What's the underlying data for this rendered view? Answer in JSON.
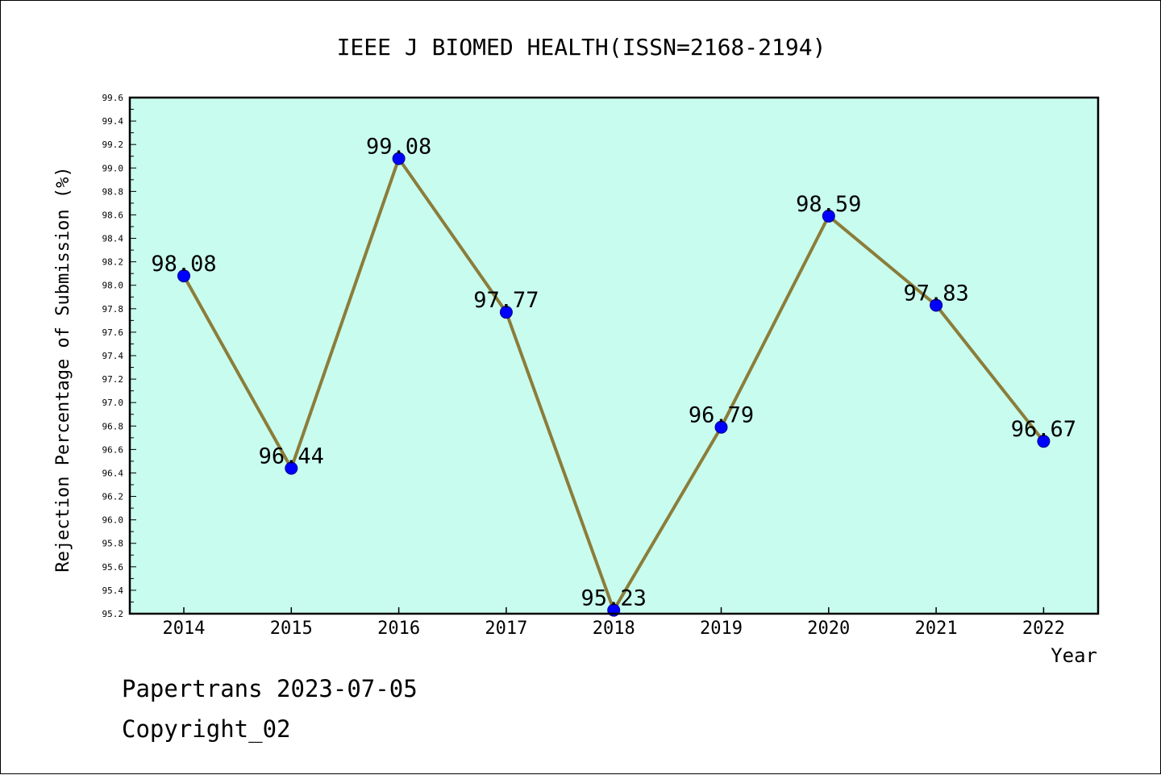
{
  "chart_data": {
    "type": "line",
    "title": "IEEE J BIOMED HEALTH(ISSN=2168-2194)",
    "xlabel": "Year",
    "ylabel": "Rejection Percentage of Submission (%)",
    "categories": [
      "2014",
      "2015",
      "2016",
      "2017",
      "2018",
      "2019",
      "2020",
      "2021",
      "2022"
    ],
    "series": [
      {
        "values": [
          98.08,
          96.44,
          99.08,
          97.77,
          95.23,
          96.79,
          98.59,
          97.83,
          96.67
        ],
        "data_labels": [
          "98.08",
          "96.44",
          "99.08",
          "97.77",
          "95.23",
          "96.79",
          "98.59",
          "97.83",
          "96.67"
        ]
      }
    ],
    "ylim": [
      95.2,
      99.6
    ],
    "yticks": [
      "95.2",
      "95.4",
      "95.6",
      "95.8",
      "96.0",
      "96.2",
      "96.4",
      "96.6",
      "96.8",
      "97.0",
      "97.2",
      "97.4",
      "97.6",
      "97.8",
      "98.0",
      "98.2",
      "98.4",
      "98.6",
      "98.8",
      "99.0",
      "99.2",
      "99.4",
      "99.6"
    ],
    "grid": false,
    "legend": "none",
    "colors": {
      "plot_background": "#c8fcee",
      "line": "#8b7d3a",
      "marker": "#0000ff"
    }
  },
  "footer": {
    "line1": "Papertrans 2023-07-05",
    "line2": "Copyright_02"
  }
}
